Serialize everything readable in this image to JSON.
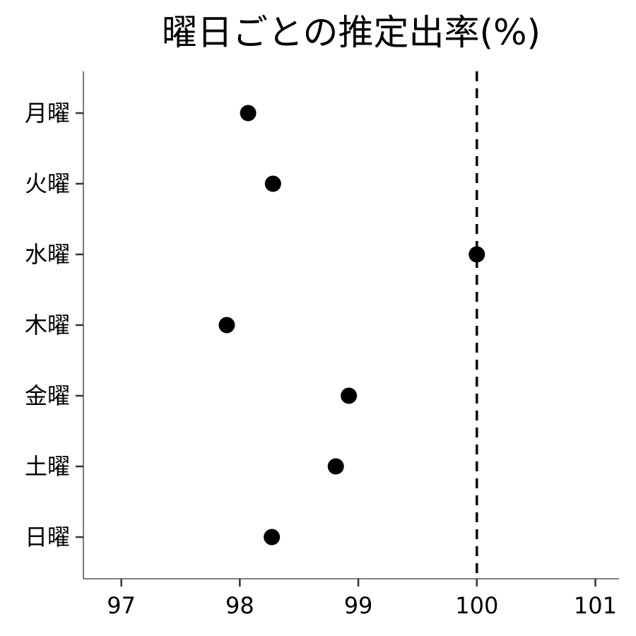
{
  "chart_data": {
    "type": "scatter",
    "title": "曜日ごとの推定出率(%)",
    "xlabel": "",
    "ylabel": "",
    "categories": [
      "月曜",
      "火曜",
      "水曜",
      "木曜",
      "金曜",
      "土曜",
      "日曜"
    ],
    "values": [
      98.07,
      98.28,
      100.0,
      97.89,
      98.92,
      98.81,
      98.27
    ],
    "xlim": [
      96.68,
      101.2
    ],
    "xticks": [
      97,
      98,
      99,
      100,
      101
    ],
    "xtick_labels": [
      "97",
      "98",
      "99",
      "100",
      "101"
    ],
    "reference_line": {
      "x": 100,
      "style": "dashed",
      "color": "#000000"
    },
    "point_color": "#000000",
    "grid": false,
    "legend": "none"
  }
}
